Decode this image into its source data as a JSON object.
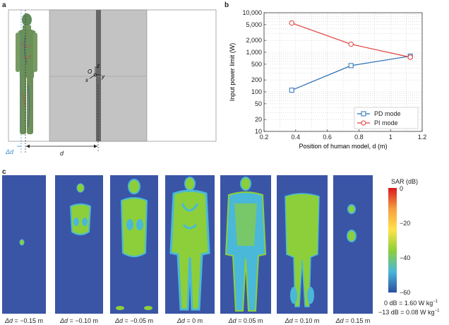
{
  "panels": {
    "a": "a",
    "b": "b",
    "c": "c"
  },
  "panel_a": {
    "delta_d_label": "Δd",
    "d_label": "d",
    "axis_x": "x",
    "axis_y": "y",
    "axis_z": "z",
    "origin": "O"
  },
  "chart_data": {
    "type": "line",
    "title": "",
    "xlabel": "Position of human model, d (m)",
    "ylabel": "Input power limit (W)",
    "xlim": [
      0.2,
      1.2
    ],
    "ylim": [
      10,
      10000
    ],
    "yscale": "log",
    "xticks": [
      "0.2",
      "0.4",
      "0.6",
      "0.8",
      "1",
      "1.2"
    ],
    "yticks": [
      {
        "value": 10,
        "label": "10"
      },
      {
        "value": 20,
        "label": "20"
      },
      {
        "value": 50,
        "label": "50"
      },
      {
        "value": 100,
        "label": "100"
      },
      {
        "value": 200,
        "label": "200"
      },
      {
        "value": 500,
        "label": "500"
      },
      {
        "value": 1000,
        "label": "1,000"
      },
      {
        "value": 2000,
        "label": "2,000"
      },
      {
        "value": 5000,
        "label": "5,000"
      },
      {
        "value": 10000,
        "label": "10,000"
      }
    ],
    "grid": true,
    "legend_position": "bottom-right",
    "series": [
      {
        "name": "PD mode",
        "color": "#2a6fb5",
        "marker": "square",
        "x": [
          0.375,
          0.75,
          1.125
        ],
        "y": [
          110,
          460,
          800
        ]
      },
      {
        "name": "PI mode",
        "color": "#e03c3c",
        "marker": "circle",
        "x": [
          0.375,
          0.75,
          1.125
        ],
        "y": [
          5500,
          1600,
          750
        ]
      }
    ]
  },
  "panel_c": {
    "colorbar_title": "SAR (dB)",
    "colorbar_ticks": [
      "0",
      "−20",
      "−40",
      "−60"
    ],
    "colorbar_note_1": "0 dB = 1.60 W kg",
    "colorbar_note_2": "−13 dB = 0.08 W kg",
    "unit_exponent": "−1",
    "delta_symbol": "Δd",
    "captions": [
      " = −0.15 m",
      " = −0.10 m",
      " = −0.05 m",
      " = 0 m",
      " = 0.05 m",
      " = 0.10 m",
      " = 0.15 m"
    ]
  },
  "colors": {
    "sar_background": "#3a55a6",
    "sar_green": "#8ccf3a",
    "sar_cyan": "#4ab8d8",
    "room_gray": "#c3c3c3"
  }
}
